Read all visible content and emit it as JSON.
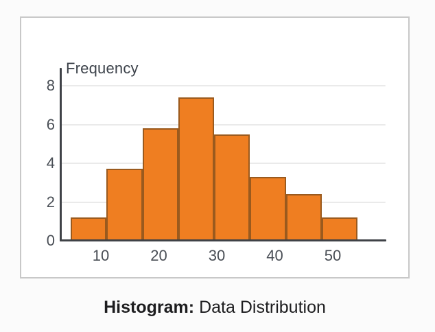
{
  "caption": {
    "prefix": "Histogram:",
    "text": "Data Distribution"
  },
  "chart_data": {
    "type": "bar",
    "title": "Histogram: Data Distribution",
    "ylabel": "Frequency",
    "xlabel": "",
    "values": [
      1.2,
      3.7,
      5.8,
      7.4,
      5.5,
      3.3,
      2.4,
      1.2
    ],
    "x_tick_labels": [
      "10",
      "20",
      "30",
      "40",
      "50"
    ],
    "y_tick_labels": [
      "0",
      "2",
      "4",
      "6",
      "8"
    ],
    "y_tick_values": [
      0,
      2,
      4,
      6,
      8
    ],
    "grid_values": [
      2,
      4,
      6,
      8
    ],
    "ylim": [
      0,
      8.9
    ],
    "grid": "horizontal-only",
    "legend": "none",
    "bar_color": "#EF7E21",
    "bar_border_color": "#9A5A1E",
    "axis_color": "#3F4247",
    "gridline_color": "#EAEAEA"
  }
}
